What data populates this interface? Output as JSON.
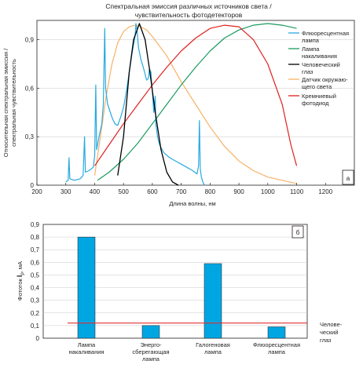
{
  "chart_data": [
    {
      "type": "line",
      "title_lines": [
        "Спектральная эмиссия различных источников света /",
        "чувствительность фотодетекторов"
      ],
      "xlabel": "Длина волны, нм",
      "ylabel_lines": [
        "Относительная спектральная эмиссия /",
        "спектральная чувствительность"
      ],
      "xlim": [
        200,
        1300
      ],
      "ylim": [
        0,
        1.0
      ],
      "xticks": [
        200,
        300,
        400,
        500,
        600,
        700,
        800,
        900,
        1000,
        1100,
        1200
      ],
      "xtick_labels": [
        "200",
        "300",
        "400",
        "500",
        "600",
        "700",
        "800",
        "900",
        "1000",
        "1100",
        "1200"
      ],
      "yticks": [
        0,
        0.3,
        0.6,
        0.9
      ],
      "ytick_labels": [
        "0",
        "0,3",
        "0,6",
        "0,9"
      ],
      "panel_label": "а",
      "legend_position": "top-right",
      "series": [
        {
          "name_lines": [
            "Флюоресцентная",
            "лампа"
          ],
          "color": "#29a9e0",
          "points": [
            [
              300,
              0.02
            ],
            [
              308,
              0.03
            ],
            [
              311,
              0.17
            ],
            [
              314,
              0.04
            ],
            [
              330,
              0.03
            ],
            [
              350,
              0.04
            ],
            [
              360,
              0.06
            ],
            [
              365,
              0.3
            ],
            [
              368,
              0.08
            ],
            [
              380,
              0.09
            ],
            [
              395,
              0.11
            ],
            [
              400,
              0.18
            ],
            [
              404,
              0.62
            ],
            [
              407,
              0.22
            ],
            [
              415,
              0.3
            ],
            [
              425,
              0.38
            ],
            [
              430,
              0.5
            ],
            [
              435,
              0.97
            ],
            [
              438,
              0.6
            ],
            [
              445,
              0.5
            ],
            [
              460,
              0.42
            ],
            [
              470,
              0.38
            ],
            [
              480,
              0.37
            ],
            [
              490,
              0.42
            ],
            [
              500,
              0.48
            ],
            [
              510,
              0.58
            ],
            [
              520,
              0.7
            ],
            [
              530,
              0.82
            ],
            [
              540,
              0.92
            ],
            [
              543,
              1.0
            ],
            [
              547,
              0.96
            ],
            [
              552,
              0.85
            ],
            [
              560,
              0.78
            ],
            [
              570,
              0.72
            ],
            [
              580,
              0.65
            ],
            [
              586,
              0.66
            ],
            [
              590,
              0.72
            ],
            [
              595,
              0.7
            ],
            [
              600,
              0.58
            ],
            [
              605,
              0.45
            ],
            [
              610,
              0.55
            ],
            [
              612,
              0.38
            ],
            [
              618,
              0.3
            ],
            [
              625,
              0.25
            ],
            [
              640,
              0.2
            ],
            [
              660,
              0.17
            ],
            [
              680,
              0.15
            ],
            [
              700,
              0.13
            ],
            [
              720,
              0.11
            ],
            [
              740,
              0.09
            ],
            [
              755,
              0.07
            ],
            [
              760,
              0.12
            ],
            [
              763,
              0.4
            ],
            [
              766,
              0.1
            ],
            [
              770,
              0.05
            ],
            [
              775,
              0.02
            ],
            [
              780,
              0.0
            ]
          ]
        },
        {
          "name_lines": [
            "Лампа",
            "накаливания"
          ],
          "color": "#1b9a5e",
          "points": [
            [
              410,
              0.03
            ],
            [
              450,
              0.08
            ],
            [
              500,
              0.16
            ],
            [
              550,
              0.26
            ],
            [
              600,
              0.38
            ],
            [
              650,
              0.5
            ],
            [
              700,
              0.62
            ],
            [
              750,
              0.73
            ],
            [
              800,
              0.83
            ],
            [
              850,
              0.91
            ],
            [
              900,
              0.96
            ],
            [
              950,
              0.99
            ],
            [
              1000,
              1.0
            ],
            [
              1050,
              0.99
            ],
            [
              1100,
              0.97
            ]
          ]
        },
        {
          "name_lines": [
            "Человеческий",
            "глаз"
          ],
          "color": "#000000",
          "points": [
            [
              480,
              0.06
            ],
            [
              500,
              0.3
            ],
            [
              520,
              0.7
            ],
            [
              535,
              0.9
            ],
            [
              555,
              1.0
            ],
            [
              575,
              0.9
            ],
            [
              590,
              0.72
            ],
            [
              610,
              0.45
            ],
            [
              630,
              0.22
            ],
            [
              650,
              0.08
            ],
            [
              670,
              0.02
            ],
            [
              690,
              0.0
            ]
          ]
        },
        {
          "name_lines": [
            "Датчик окружаю-",
            "щего света"
          ],
          "color": "#f7b267",
          "points": [
            [
              400,
              0.06
            ],
            [
              420,
              0.3
            ],
            [
              440,
              0.55
            ],
            [
              460,
              0.75
            ],
            [
              480,
              0.88
            ],
            [
              500,
              0.95
            ],
            [
              520,
              0.98
            ],
            [
              540,
              0.99
            ],
            [
              560,
              0.98
            ],
            [
              580,
              0.96
            ],
            [
              600,
              0.92
            ],
            [
              650,
              0.8
            ],
            [
              700,
              0.64
            ],
            [
              750,
              0.5
            ],
            [
              800,
              0.36
            ],
            [
              850,
              0.24
            ],
            [
              900,
              0.15
            ],
            [
              950,
              0.09
            ],
            [
              1000,
              0.05
            ],
            [
              1050,
              0.03
            ],
            [
              1100,
              0.01
            ]
          ]
        },
        {
          "name_lines": [
            "Кремниевый",
            "фотодиод"
          ],
          "color": "#e02020",
          "points": [
            [
              400,
              0.12
            ],
            [
              450,
              0.25
            ],
            [
              500,
              0.38
            ],
            [
              550,
              0.5
            ],
            [
              600,
              0.62
            ],
            [
              650,
              0.73
            ],
            [
              700,
              0.83
            ],
            [
              750,
              0.91
            ],
            [
              800,
              0.97
            ],
            [
              850,
              0.99
            ],
            [
              900,
              0.98
            ],
            [
              950,
              0.9
            ],
            [
              1000,
              0.75
            ],
            [
              1050,
              0.5
            ],
            [
              1080,
              0.25
            ],
            [
              1100,
              0.12
            ]
          ]
        }
      ]
    },
    {
      "type": "bar",
      "ylabel_lines": [
        "Фототок ",
        "I",
        "р",
        ", мА"
      ],
      "ylim": [
        0,
        0.9
      ],
      "yticks": [
        0,
        0.1,
        0.2,
        0.3,
        0.4,
        0.5,
        0.6,
        0.7,
        0.8,
        0.9
      ],
      "ytick_labels": [
        "0",
        "0,1",
        "0,2",
        "0,3",
        "0,4",
        "0,5",
        "0,6",
        "0,7",
        "0,8",
        "0,9"
      ],
      "panel_label": "б",
      "bar_color": "#00a6e2",
      "categories": [
        {
          "lines": [
            "Лампа",
            "накаливания"
          ],
          "value": 0.8
        },
        {
          "lines": [
            "Энерго-",
            "сберегающая",
            "лампа"
          ],
          "value": 0.1
        },
        {
          "lines": [
            "Галогеновая",
            "лампа"
          ],
          "value": 0.59
        },
        {
          "lines": [
            "Флюоресцентная",
            "лампа"
          ],
          "value": 0.09
        }
      ],
      "reference_line": {
        "value": 0.12,
        "color": "#e03030",
        "label_lines": [
          "Челове-",
          "ческий",
          "глаз"
        ]
      }
    }
  ]
}
